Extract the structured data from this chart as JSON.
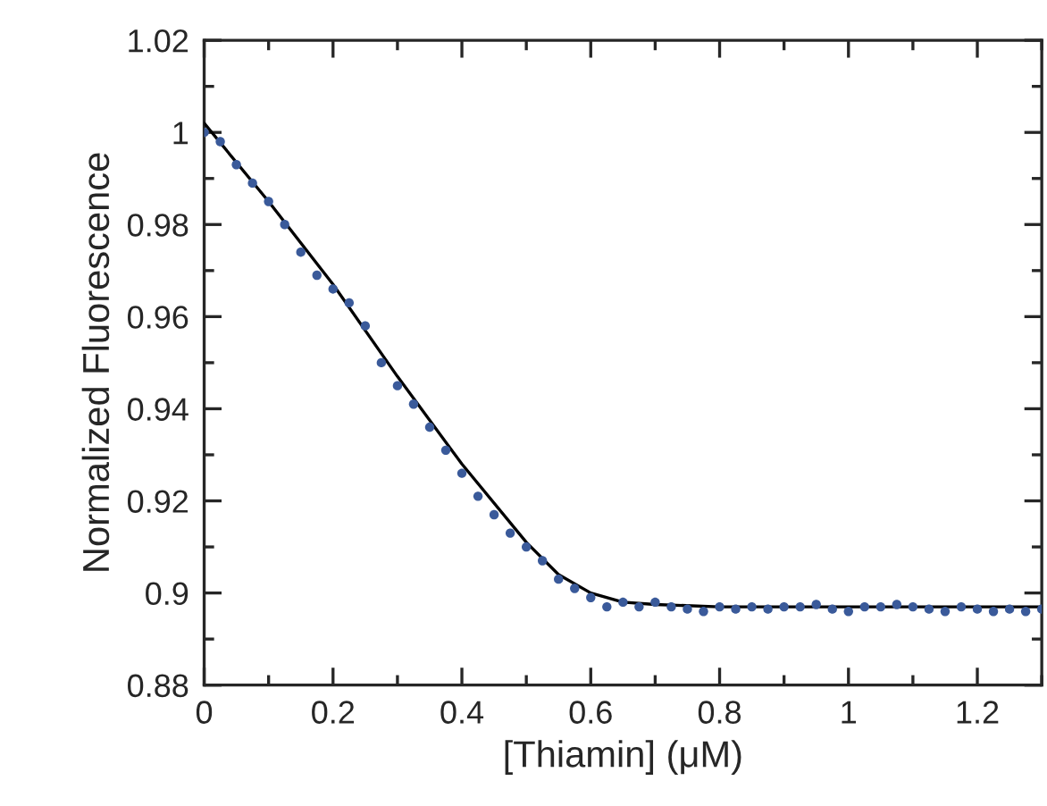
{
  "chart_data": {
    "type": "scatter",
    "xlabel": "[Thiamin] (μM)",
    "ylabel": "Normalized Fluorescence",
    "xlim": [
      0,
      1.3
    ],
    "xticks": [
      0,
      0.2,
      0.4,
      0.6,
      0.8,
      1,
      1.2
    ],
    "ylim": [
      0.88,
      1.02
    ],
    "yticks": [
      0.88,
      0.9,
      0.92,
      0.94,
      0.96,
      0.98,
      1,
      1.02
    ],
    "grid": false,
    "legend": false,
    "marker": "circle",
    "series": [
      {
        "color": "#3a5a9a",
        "x": [
          0,
          0.025,
          0.05,
          0.075,
          0.1,
          0.125,
          0.15,
          0.175,
          0.2,
          0.225,
          0.25,
          0.275,
          0.3,
          0.325,
          0.35,
          0.375,
          0.4,
          0.425,
          0.45,
          0.475,
          0.5,
          0.525,
          0.55,
          0.575,
          0.6,
          0.625,
          0.65,
          0.675,
          0.7,
          0.725,
          0.75,
          0.775,
          0.8,
          0.825,
          0.85,
          0.875,
          0.9,
          0.925,
          0.95,
          0.975,
          1.0,
          1.025,
          1.05,
          1.075,
          1.1,
          1.125,
          1.15,
          1.175,
          1.2,
          1.225,
          1.25,
          1.275,
          1.3
        ],
        "values": [
          1.0,
          0.998,
          0.993,
          0.989,
          0.985,
          0.98,
          0.974,
          0.969,
          0.966,
          0.963,
          0.958,
          0.95,
          0.945,
          0.941,
          0.936,
          0.931,
          0.926,
          0.921,
          0.917,
          0.913,
          0.91,
          0.907,
          0.903,
          0.901,
          0.899,
          0.897,
          0.898,
          0.897,
          0.898,
          0.897,
          0.8965,
          0.896,
          0.897,
          0.8965,
          0.897,
          0.8965,
          0.897,
          0.897,
          0.8975,
          0.8965,
          0.896,
          0.897,
          0.897,
          0.8975,
          0.897,
          0.8965,
          0.896,
          0.897,
          0.8965,
          0.896,
          0.8965,
          0.896,
          0.8965
        ]
      },
      {
        "type": "line",
        "color": "#000000",
        "marker": "none",
        "line_style": "solid",
        "x": [
          0,
          0.1,
          0.2,
          0.3,
          0.4,
          0.5,
          0.55,
          0.6,
          0.65,
          0.7,
          0.8,
          1.0,
          1.3
        ],
        "values": [
          1.002,
          0.985,
          0.967,
          0.947,
          0.928,
          0.911,
          0.904,
          0.9,
          0.898,
          0.8975,
          0.897,
          0.897,
          0.897
        ]
      }
    ]
  }
}
